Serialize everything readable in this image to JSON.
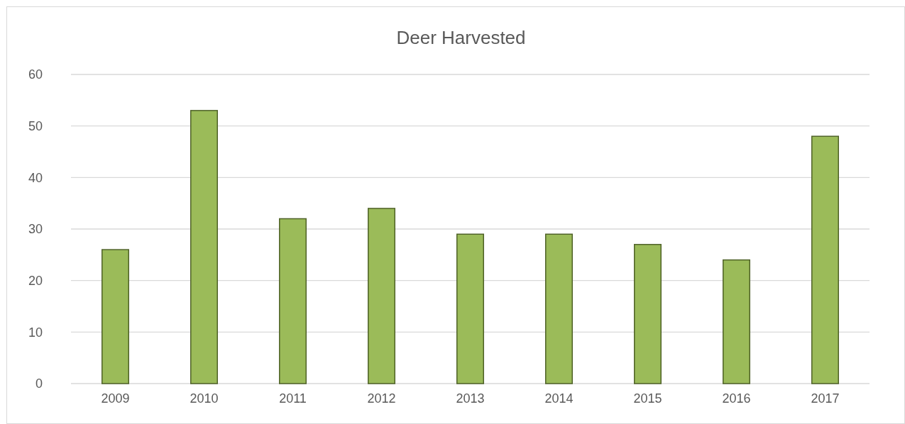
{
  "chart_data": {
    "type": "bar",
    "title": "Deer Harvested",
    "categories": [
      "2009",
      "2010",
      "2011",
      "2012",
      "2013",
      "2014",
      "2015",
      "2016",
      "2017"
    ],
    "values": [
      26,
      53,
      32,
      34,
      29,
      29,
      27,
      24,
      48
    ],
    "color": "#9bbb59",
    "ylim": [
      0,
      60
    ],
    "yticks": [
      0,
      10,
      20,
      30,
      40,
      50,
      60
    ],
    "grid": "y"
  }
}
